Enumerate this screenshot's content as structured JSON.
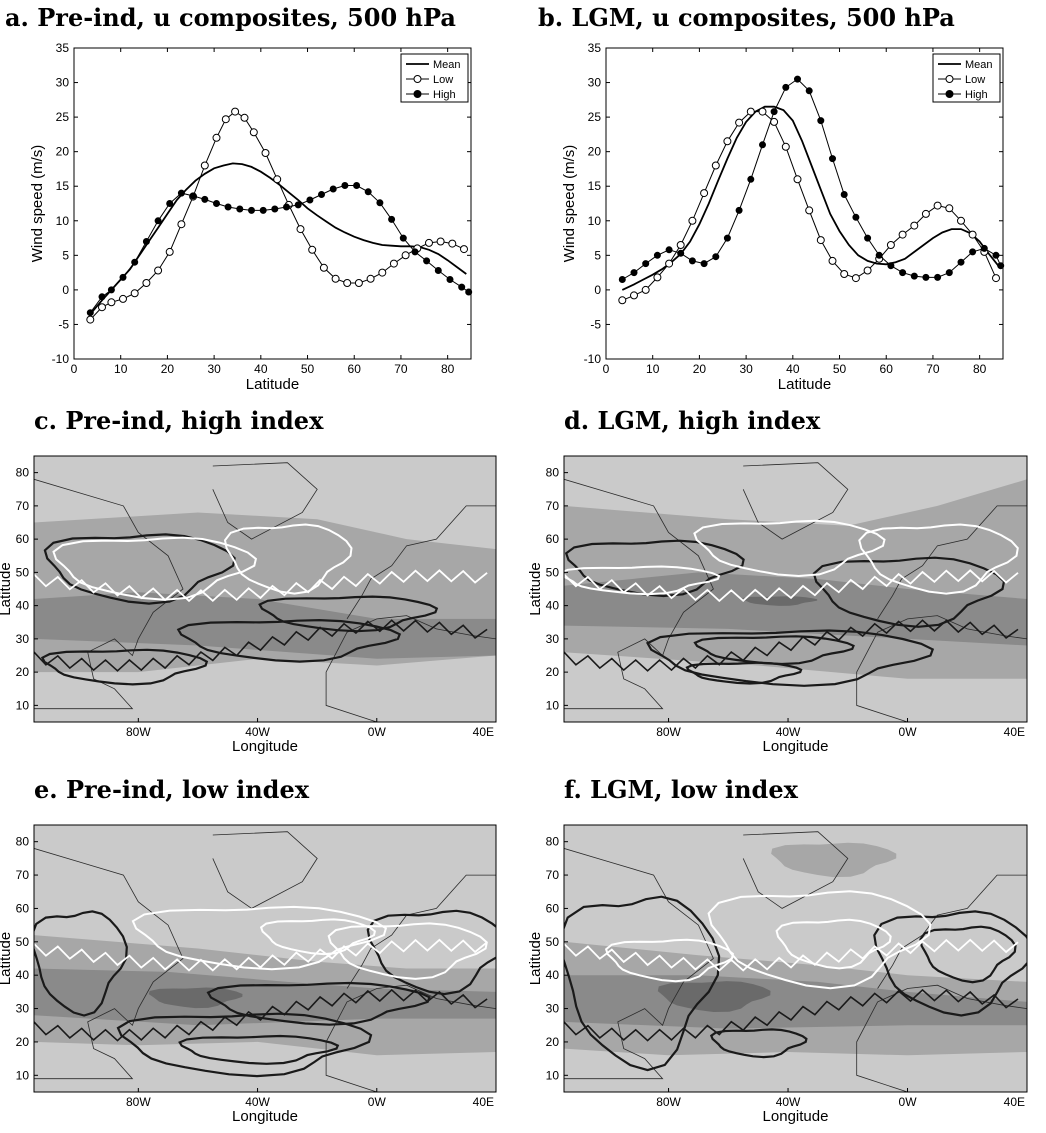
{
  "chart_data": [
    {
      "panel": "a",
      "type": "line",
      "title": "a. Pre-ind, u composites, 500 hPa",
      "xlabel": "Latitude",
      "ylabel": "Wind speed (m/s)",
      "xlim": [
        0,
        85
      ],
      "ylim": [
        -10,
        35
      ],
      "xticks": [
        0,
        10,
        20,
        30,
        40,
        50,
        60,
        70,
        80
      ],
      "yticks": [
        -10,
        -5,
        0,
        5,
        10,
        15,
        20,
        25,
        30,
        35
      ],
      "legend_position": "top-right",
      "series": [
        {
          "name": "Mean",
          "marker": "none",
          "x": [
            3.5,
            6,
            8,
            10,
            12,
            14,
            16,
            18,
            20,
            22,
            24,
            26,
            28,
            30,
            32,
            34,
            36,
            38,
            40,
            42,
            44,
            46,
            48,
            50,
            52,
            54,
            56,
            58,
            60,
            62,
            64,
            66,
            68,
            70,
            72,
            74,
            76,
            78,
            80,
            82,
            84
          ],
          "y": [
            -3.5,
            -1.5,
            0,
            1.5,
            3,
            5,
            7,
            9,
            11,
            13,
            14.5,
            15.8,
            16.8,
            17.6,
            18,
            18.3,
            18.2,
            17.8,
            17.1,
            16.2,
            15.2,
            14.1,
            13,
            11.8,
            10.8,
            9.9,
            9,
            8.3,
            7.7,
            7.2,
            6.8,
            6.5,
            6.4,
            6.3,
            6.3,
            6.2,
            5.8,
            5.2,
            4.3,
            3.3,
            2.3
          ]
        },
        {
          "name": "Low",
          "marker": "open-circle",
          "x": [
            3.5,
            6,
            8,
            10.5,
            13,
            15.5,
            18,
            20.5,
            23,
            25.5,
            28,
            30.5,
            32.5,
            34.5,
            36.5,
            38.5,
            41,
            43.5,
            46,
            48.5,
            51,
            53.5,
            56,
            58.5,
            61,
            63.5,
            66,
            68.5,
            71,
            73.5,
            76,
            78.5,
            81,
            83.5
          ],
          "y": [
            -4.3,
            -2.5,
            -1.8,
            -1.3,
            -0.5,
            1,
            2.8,
            5.5,
            9.5,
            13.5,
            18,
            22,
            24.7,
            25.8,
            24.9,
            22.8,
            19.8,
            16,
            12.3,
            8.8,
            5.8,
            3.2,
            1.6,
            1,
            1,
            1.6,
            2.5,
            3.8,
            5,
            6,
            6.8,
            7,
            6.7,
            5.9
          ]
        },
        {
          "name": "High",
          "marker": "filled-circle",
          "x": [
            3.5,
            6,
            8,
            10.5,
            13,
            15.5,
            18,
            20.5,
            23,
            25.5,
            28,
            30.5,
            33,
            35.5,
            38,
            40.5,
            43,
            45.5,
            48,
            50.5,
            53,
            55.5,
            58,
            60.5,
            63,
            65.5,
            68,
            70.5,
            73,
            75.5,
            78,
            80.5,
            83,
            84.5
          ],
          "y": [
            -3.3,
            -1,
            0,
            1.8,
            4,
            7,
            10,
            12.5,
            14,
            13.6,
            13.1,
            12.5,
            12,
            11.7,
            11.5,
            11.5,
            11.7,
            12,
            12.3,
            13,
            13.8,
            14.6,
            15.1,
            15.1,
            14.2,
            12.6,
            10.2,
            7.5,
            5.5,
            4.2,
            2.8,
            1.5,
            0.4,
            -0.3
          ]
        }
      ]
    },
    {
      "panel": "b",
      "type": "line",
      "title": "b. LGM, u composites, 500 hPa",
      "xlabel": "Latitude",
      "ylabel": "Wind speed (m/s)",
      "xlim": [
        0,
        85
      ],
      "ylim": [
        -10,
        35
      ],
      "xticks": [
        0,
        10,
        20,
        30,
        40,
        50,
        60,
        70,
        80
      ],
      "yticks": [
        -10,
        -5,
        0,
        5,
        10,
        15,
        20,
        25,
        30,
        35
      ],
      "legend_position": "top-right",
      "series": [
        {
          "name": "Mean",
          "marker": "none",
          "x": [
            3.5,
            6,
            8,
            10,
            12,
            14,
            16,
            18,
            20,
            22,
            24,
            26,
            28,
            30,
            32,
            34,
            36,
            38,
            40,
            42,
            44,
            46,
            48,
            50,
            52,
            54,
            56,
            58,
            60,
            62,
            64,
            66,
            68,
            70,
            72,
            74,
            76,
            78,
            80,
            82,
            84
          ],
          "y": [
            0,
            0.8,
            1.5,
            2.2,
            3,
            4,
            5.2,
            7,
            9.5,
            12.5,
            15.8,
            19,
            22,
            24.3,
            25.8,
            26.5,
            26.5,
            26,
            24.5,
            21.5,
            18,
            14.5,
            11,
            8.5,
            6.5,
            5,
            4.2,
            3.8,
            3.7,
            4,
            4.5,
            5.5,
            6.5,
            7.5,
            8.3,
            8.8,
            8.8,
            8.2,
            7,
            5.2,
            3.5
          ]
        },
        {
          "name": "Low",
          "marker": "open-circle",
          "x": [
            3.5,
            6,
            8.5,
            11,
            13.5,
            16,
            18.5,
            21,
            23.5,
            26,
            28.5,
            31,
            33.5,
            36,
            38.5,
            41,
            43.5,
            46,
            48.5,
            51,
            53.5,
            56,
            58.5,
            61,
            63.5,
            66,
            68.5,
            71,
            73.5,
            76,
            78.5,
            81,
            83.5
          ],
          "y": [
            -1.5,
            -0.8,
            0,
            1.8,
            3.8,
            6.5,
            10,
            14,
            18,
            21.5,
            24.2,
            25.8,
            25.8,
            24.3,
            20.7,
            16,
            11.5,
            7.2,
            4.2,
            2.3,
            1.7,
            2.8,
            4.5,
            6.5,
            8,
            9.3,
            11,
            12.2,
            11.8,
            10,
            8,
            5.5,
            1.7
          ]
        },
        {
          "name": "High",
          "marker": "filled-circle",
          "x": [
            3.5,
            6,
            8.5,
            11,
            13.5,
            16,
            18.5,
            21,
            23.5,
            26,
            28.5,
            31,
            33.5,
            36,
            38.5,
            41,
            43.5,
            46,
            48.5,
            51,
            53.5,
            56,
            58.5,
            61,
            63.5,
            66,
            68.5,
            71,
            73.5,
            76,
            78.5,
            81,
            83.5,
            84.5
          ],
          "y": [
            1.5,
            2.5,
            3.8,
            5,
            5.8,
            5.3,
            4.2,
            3.8,
            4.8,
            7.5,
            11.5,
            16,
            21,
            25.8,
            29.3,
            30.5,
            28.8,
            24.5,
            19,
            13.8,
            10.5,
            7.5,
            5,
            3.5,
            2.5,
            2,
            1.8,
            1.8,
            2.5,
            4,
            5.5,
            6,
            5,
            3.5
          ]
        }
      ]
    },
    {
      "panel": "c",
      "type": "heatmap",
      "title": "c. Pre-ind, high index",
      "xlabel": "Longitude",
      "ylabel": "Latitude",
      "xticks": [
        "80W",
        "40W",
        "0W",
        "40E"
      ],
      "yticks": [
        10,
        20,
        30,
        40,
        50,
        60,
        70,
        80
      ],
      "xlim": [
        -115,
        40
      ],
      "ylim": [
        5,
        85
      ]
    },
    {
      "panel": "d",
      "type": "heatmap",
      "title": "d. LGM, high index",
      "xlabel": "Longitude",
      "ylabel": "Latitude",
      "xticks": [
        "80W",
        "40W",
        "0W",
        "40E"
      ],
      "yticks": [
        10,
        20,
        30,
        40,
        50,
        60,
        70,
        80
      ],
      "xlim": [
        -115,
        40
      ],
      "ylim": [
        5,
        85
      ]
    },
    {
      "panel": "e",
      "type": "heatmap",
      "title": "e. Pre-ind, low index",
      "xlabel": "Longitude",
      "ylabel": "Latitude",
      "xticks": [
        "80W",
        "40W",
        "0W",
        "40E"
      ],
      "yticks": [
        10,
        20,
        30,
        40,
        50,
        60,
        70,
        80
      ],
      "xlim": [
        -115,
        40
      ],
      "ylim": [
        5,
        85
      ]
    },
    {
      "panel": "f",
      "type": "heatmap",
      "title": "f. LGM, low index",
      "xlabel": "Longitude",
      "ylabel": "Latitude",
      "xticks": [
        "80W",
        "40W",
        "0W",
        "40E"
      ],
      "yticks": [
        10,
        20,
        30,
        40,
        50,
        60,
        70,
        80
      ],
      "xlim": [
        -115,
        40
      ],
      "ylim": [
        5,
        85
      ]
    }
  ],
  "colors": {
    "shade_light": "#cacaca",
    "shade_mid": "#a7a7a7",
    "shade_dark": "#8a8a8a",
    "shade_darkest": "#6a6a6a",
    "contour_dark": "#1a1a1a",
    "contour_white": "#ffffff"
  }
}
